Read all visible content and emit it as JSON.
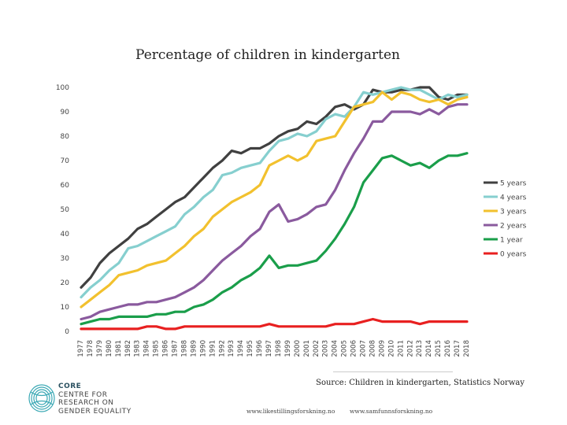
{
  "chart_data": {
    "type": "line",
    "title": "Percentage of children in kindergarten",
    "xlabel": "",
    "ylabel": "",
    "ylim": [
      0,
      100
    ],
    "yticks": [
      0,
      10,
      20,
      30,
      40,
      50,
      60,
      70,
      80,
      90,
      100
    ],
    "grid": false,
    "legend_position": "right",
    "x": [
      "1977",
      "1978",
      "1979",
      "1980",
      "1981",
      "1982",
      "1983",
      "1984",
      "1985",
      "1986",
      "1987",
      "1988",
      "1989",
      "1990",
      "1991",
      "1992",
      "1993",
      "1994",
      "1995",
      "1996",
      "1997",
      "1998",
      "1999",
      "2000",
      "2001",
      "2002",
      "2003",
      "2004",
      "2005",
      "2006",
      "2007",
      "2008",
      "2009",
      "2010",
      "2011",
      "2012",
      "2013",
      "2014",
      "2015",
      "2016",
      "2017",
      "2018"
    ],
    "series": [
      {
        "name": "5 years",
        "color": "#404040",
        "values": [
          18,
          22,
          28,
          32,
          35,
          38,
          42,
          44,
          47,
          50,
          53,
          55,
          59,
          63,
          67,
          70,
          74,
          73,
          75,
          75,
          77,
          80,
          82,
          83,
          86,
          85,
          88,
          92,
          93,
          91,
          93,
          99,
          98,
          98,
          99,
          99,
          100,
          100,
          96,
          95,
          97,
          97
        ]
      },
      {
        "name": "4 years",
        "color": "#86cfcf",
        "values": [
          14,
          18,
          21,
          25,
          28,
          34,
          35,
          37,
          39,
          41,
          43,
          48,
          51,
          55,
          58,
          64,
          65,
          67,
          68,
          69,
          74,
          78,
          79,
          81,
          80,
          82,
          87,
          89,
          88,
          92,
          98,
          97,
          98,
          99,
          100,
          99,
          99,
          97,
          95,
          97,
          96,
          97
        ]
      },
      {
        "name": "3 years",
        "color": "#f2c12e",
        "values": [
          10,
          13,
          16,
          19,
          23,
          24,
          25,
          27,
          28,
          29,
          32,
          35,
          39,
          42,
          47,
          50,
          53,
          55,
          57,
          60,
          68,
          70,
          72,
          70,
          72,
          78,
          79,
          80,
          86,
          92,
          93,
          94,
          98,
          95,
          98,
          97,
          95,
          94,
          95,
          93,
          95,
          96
        ]
      },
      {
        "name": "2 years",
        "color": "#8a5a9e",
        "values": [
          5,
          6,
          8,
          9,
          10,
          11,
          11,
          12,
          12,
          13,
          14,
          16,
          18,
          21,
          25,
          29,
          32,
          35,
          39,
          42,
          49,
          52,
          45,
          46,
          48,
          51,
          52,
          58,
          66,
          73,
          79,
          86,
          86,
          90,
          90,
          90,
          89,
          91,
          89,
          92,
          93,
          93
        ]
      },
      {
        "name": "1 year",
        "color": "#1a9e4a",
        "values": [
          3,
          4,
          5,
          5,
          6,
          6,
          6,
          6,
          7,
          7,
          8,
          8,
          10,
          11,
          13,
          16,
          18,
          21,
          23,
          26,
          31,
          26,
          27,
          27,
          28,
          29,
          33,
          38,
          44,
          51,
          61,
          66,
          71,
          72,
          70,
          68,
          69,
          67,
          70,
          72,
          72,
          73
        ]
      },
      {
        "name": "0 years",
        "color": "#e82020",
        "values": [
          1,
          1,
          1,
          1,
          1,
          1,
          1,
          2,
          2,
          1,
          1,
          2,
          2,
          2,
          2,
          2,
          2,
          2,
          2,
          2,
          3,
          2,
          2,
          2,
          2,
          2,
          2,
          3,
          3,
          3,
          4,
          5,
          4,
          4,
          4,
          4,
          3,
          4,
          4,
          4,
          4,
          4
        ]
      }
    ]
  },
  "source": "Source: Children in kindergarten, Statistics Norway",
  "urls": [
    "www.likestillingsforskning.no",
    "www.samfunnsforskning.no"
  ],
  "logo": {
    "line1": "CORE",
    "line2": "CENTRE FOR",
    "line3": "RESEARCH ON",
    "line4": "GENDER EQUALITY"
  }
}
